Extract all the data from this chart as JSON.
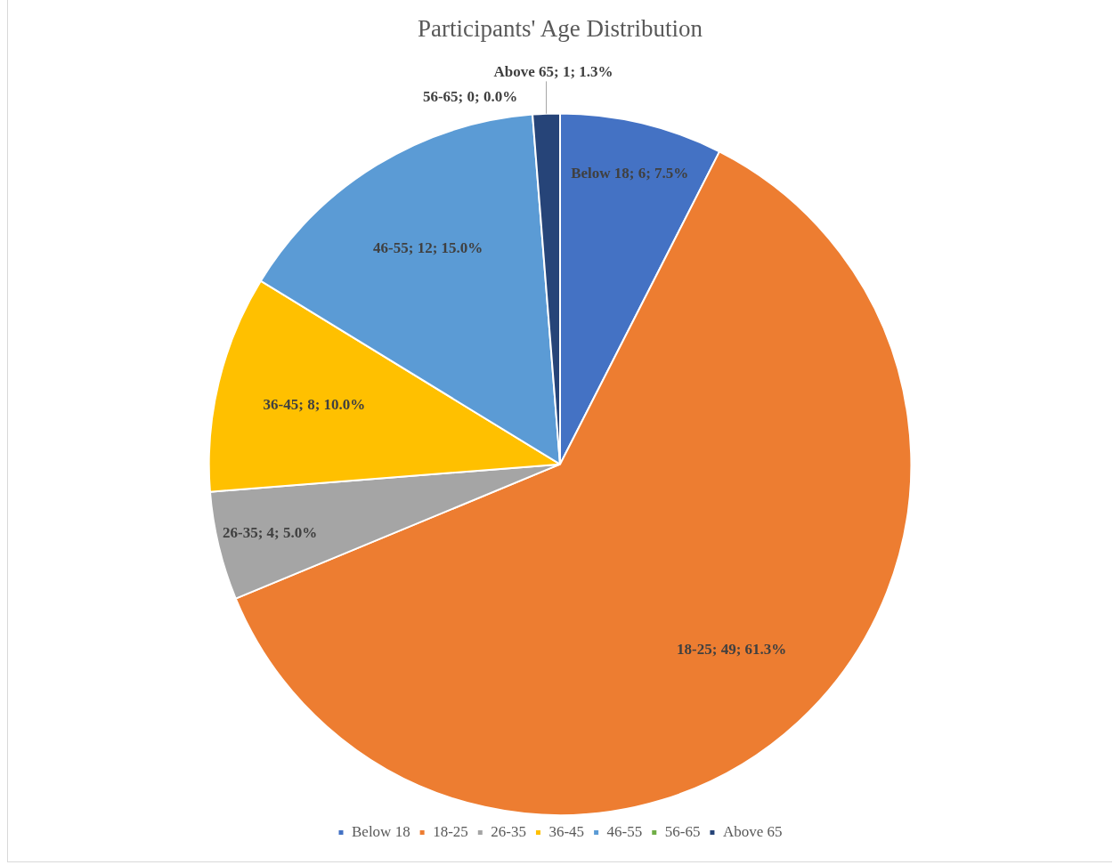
{
  "chart_data": {
    "type": "pie",
    "title": "Participants' Age Distribution",
    "categories": [
      "Below 18",
      "18-25",
      "26-35",
      "36-45",
      "46-55",
      "56-65",
      "Above 65"
    ],
    "values": [
      6,
      49,
      4,
      8,
      12,
      0,
      1
    ],
    "colors": [
      "#4472c4",
      "#ed7d31",
      "#a5a5a5",
      "#ffc000",
      "#5b9bd5",
      "#70ad47",
      "#264478"
    ],
    "value_labels": [
      "Below 18; 6; 7.5%",
      "18-25; 49; 61.3%",
      "26-35; 4; 5.0%",
      "36-45; 8; 10.0%",
      "46-55; 12; 15.0%",
      "56-65; 0; 0.0%",
      "Above 65; 1; 1.3%"
    ],
    "legend": "bottom"
  }
}
